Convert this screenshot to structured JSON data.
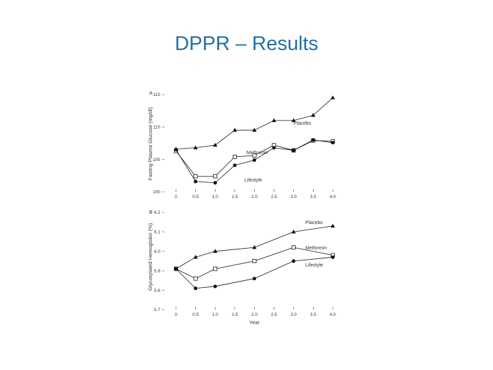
{
  "slide": {
    "title": "DPPR – Results"
  },
  "chart_data": [
    {
      "type": "line",
      "panel_label": "A",
      "title": "",
      "xlabel": "",
      "ylabel": "Fasting Plasma Glucose (mg/dl)",
      "xlim": [
        0,
        4.0
      ],
      "ylim": [
        100,
        115
      ],
      "x_ticks": [
        "0",
        "0.5",
        "1.0",
        "1.5",
        "2.0",
        "2.5",
        "3.0",
        "3.5",
        "4.0"
      ],
      "y_ticks": [
        "100",
        "105",
        "110",
        "115"
      ],
      "grid": false,
      "series": [
        {
          "name": "Placebo",
          "marker": "triangle",
          "x": [
            0,
            0.5,
            1.0,
            1.5,
            2.0,
            2.5,
            3.0,
            3.5,
            4.0
          ],
          "values": [
            106.6,
            106.8,
            107.2,
            109.5,
            109.5,
            111.0,
            111.0,
            111.8,
            114.5
          ]
        },
        {
          "name": "Metformin",
          "marker": "open-square",
          "x": [
            0,
            0.5,
            1.0,
            1.5,
            2.0,
            2.5,
            3.0,
            3.5,
            4.0
          ],
          "values": [
            106.3,
            102.4,
            102.4,
            105.4,
            105.6,
            107.2,
            106.4,
            107.9,
            107.8
          ]
        },
        {
          "name": "Lifestyle",
          "marker": "filled-circle",
          "x": [
            0,
            0.5,
            1.0,
            1.5,
            2.0,
            2.5,
            3.0,
            3.5,
            4.0
          ],
          "values": [
            106.5,
            101.6,
            101.4,
            104.1,
            104.9,
            106.8,
            106.4,
            108.0,
            107.6
          ]
        }
      ]
    },
    {
      "type": "line",
      "panel_label": "B",
      "title": "",
      "xlabel": "Year",
      "ylabel": "Glycosylated Hemoglobin (%)",
      "xlim": [
        0,
        4.0
      ],
      "ylim": [
        5.7,
        6.2
      ],
      "x_ticks": [
        "0",
        "0.5",
        "1.0",
        "1.5",
        "2.0",
        "2.5",
        "3.0",
        "3.5",
        "4.0"
      ],
      "y_ticks": [
        "5.7",
        "5.8",
        "5.9",
        "6.0",
        "6.1",
        "6.2"
      ],
      "grid": false,
      "series": [
        {
          "name": "Placebo",
          "marker": "triangle",
          "x": [
            0,
            0.5,
            1.0,
            2.0,
            3.0,
            4.0
          ],
          "values": [
            5.91,
            5.97,
            6.0,
            6.02,
            6.1,
            6.13
          ]
        },
        {
          "name": "Metformin",
          "marker": "open-square",
          "x": [
            0,
            0.5,
            1.0,
            2.0,
            3.0,
            4.0
          ],
          "values": [
            5.91,
            5.86,
            5.91,
            5.95,
            6.02,
            5.98
          ]
        },
        {
          "name": "Lifestyle",
          "marker": "filled-circle",
          "x": [
            0,
            0.5,
            1.0,
            2.0,
            3.0,
            4.0
          ],
          "values": [
            5.91,
            5.81,
            5.82,
            5.86,
            5.95,
            5.97
          ]
        }
      ]
    }
  ]
}
